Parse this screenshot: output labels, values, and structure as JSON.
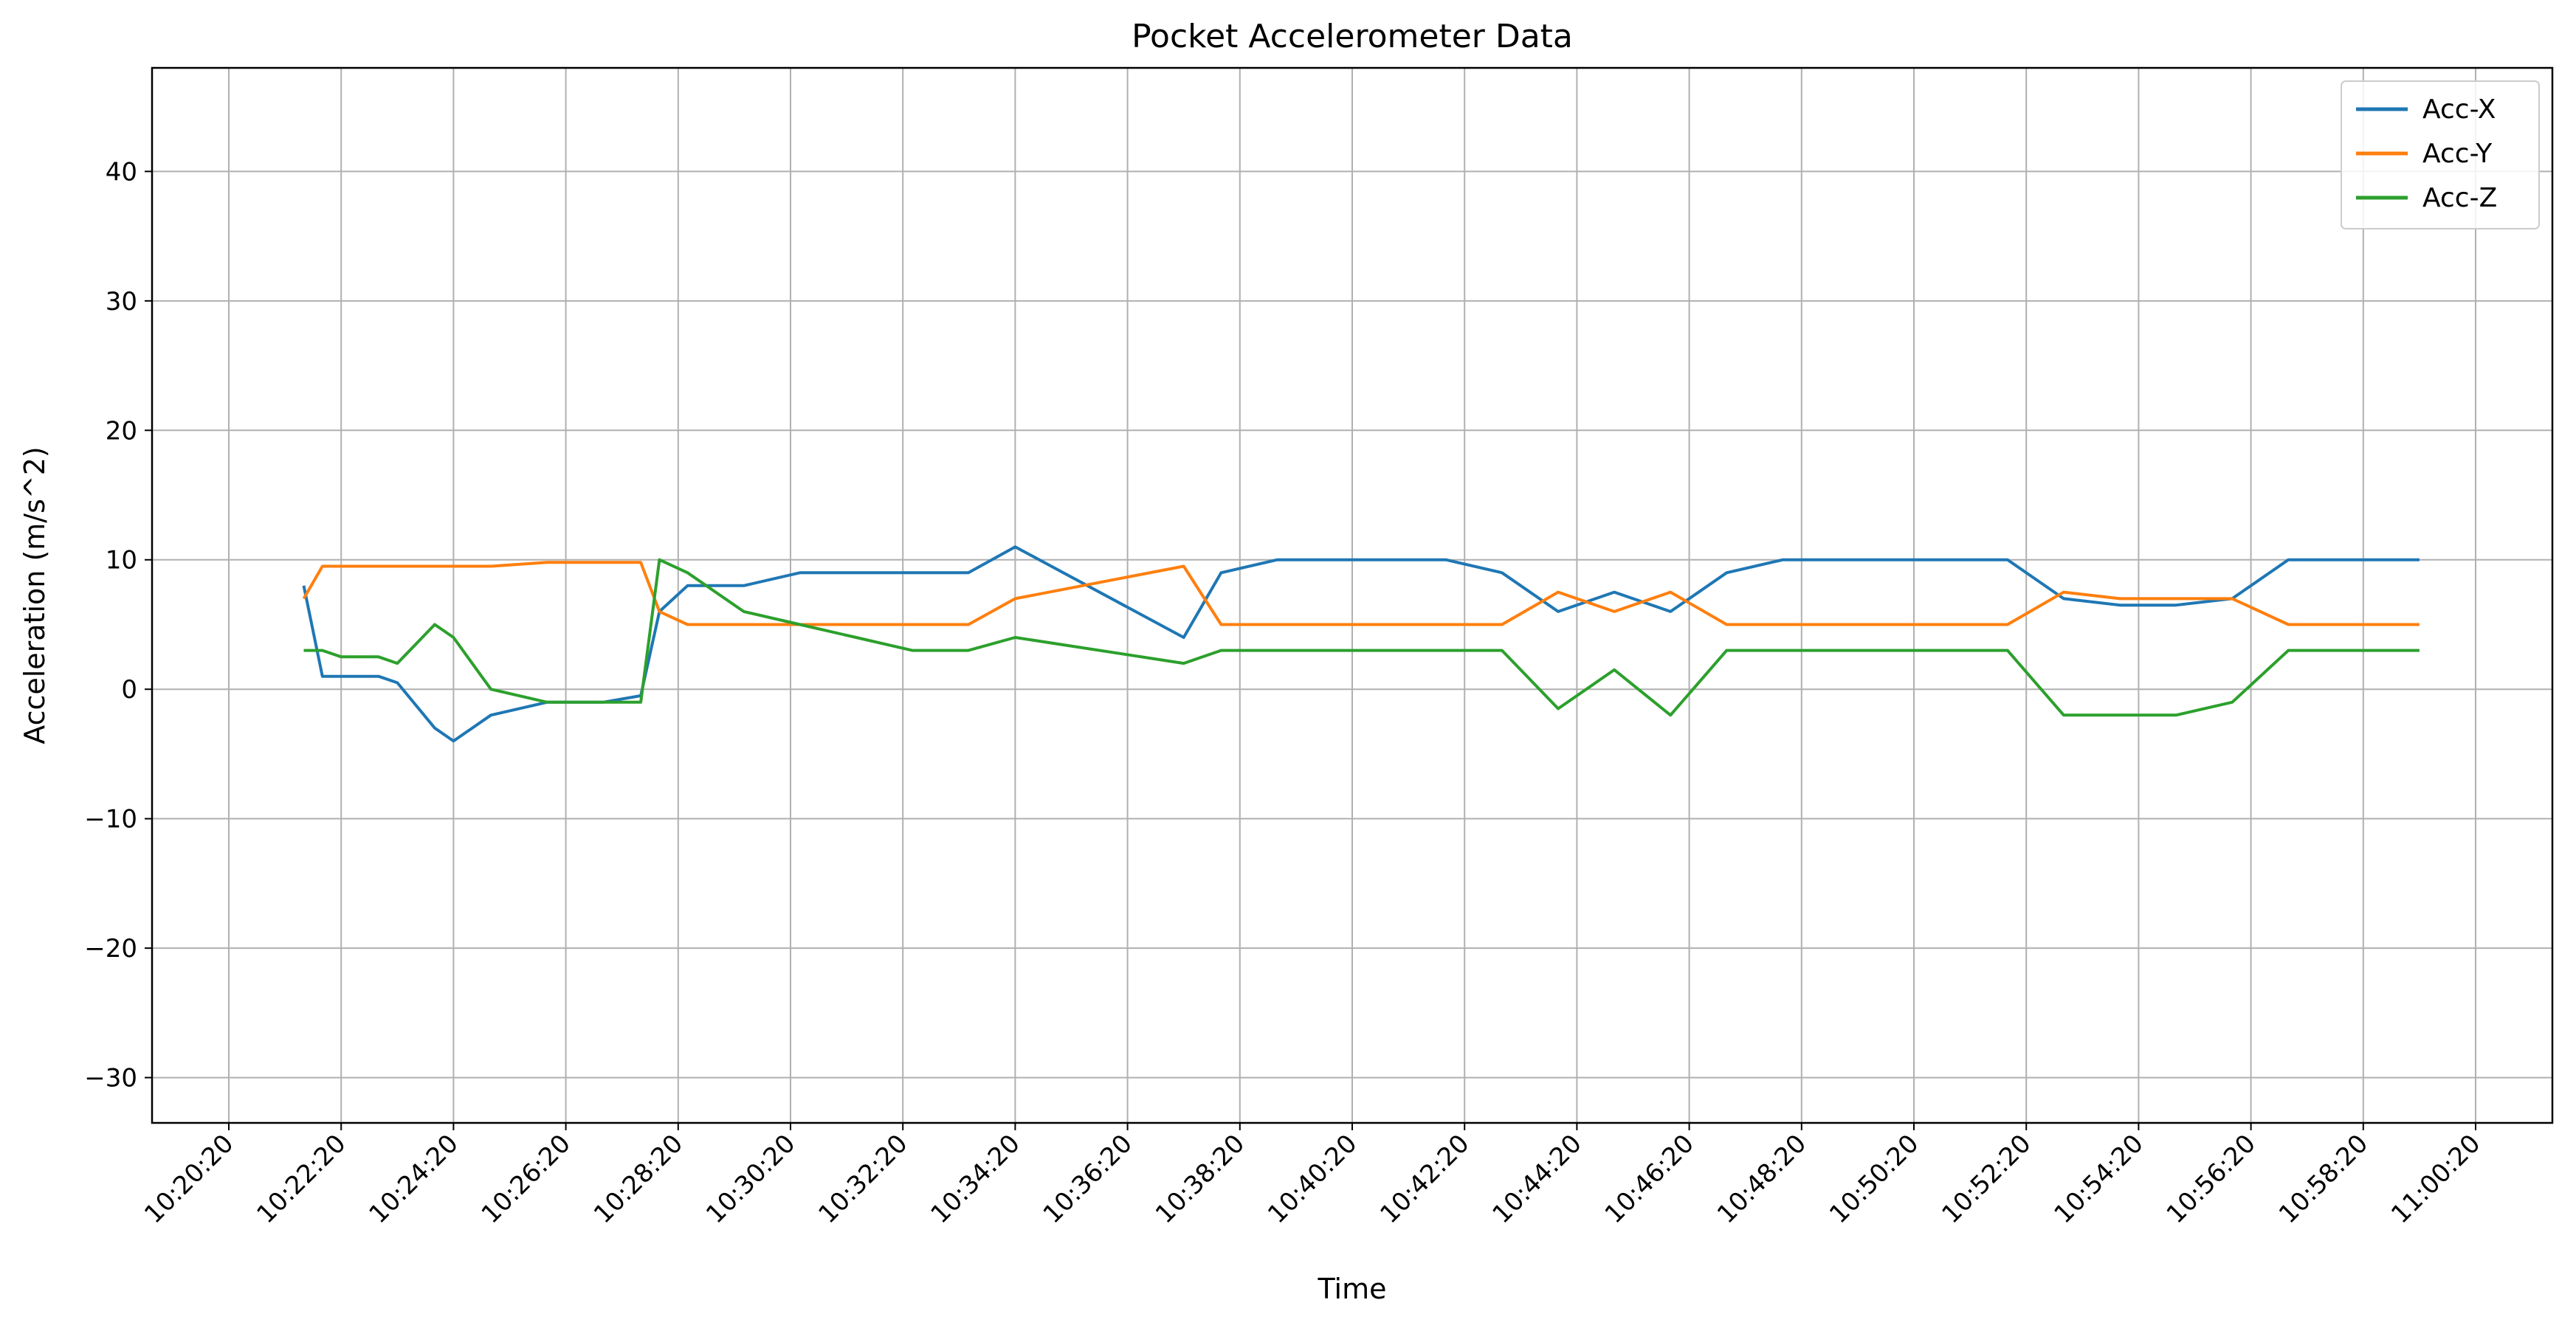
{
  "chart_data": {
    "type": "line",
    "title": "Pocket Accelerometer Data",
    "xlabel": "Time",
    "ylabel": "Acceleration (m/s^2)",
    "xlim": [
      "10:20:20",
      "11:00:20"
    ],
    "ylim": [
      -33.5,
      48
    ],
    "x_ticks": [
      "10:20:20",
      "10:22:20",
      "10:24:20",
      "10:26:20",
      "10:28:20",
      "10:30:20",
      "10:32:20",
      "10:34:20",
      "10:36:20",
      "10:38:20",
      "10:40:20",
      "10:42:20",
      "10:44:20",
      "10:46:20",
      "10:48:20",
      "10:50:20",
      "10:52:20",
      "10:54:20",
      "10:56:20",
      "10:58:20",
      "11:00:20"
    ],
    "y_ticks": [
      -30,
      -20,
      -10,
      0,
      10,
      20,
      30,
      40
    ],
    "y_tick_labels": [
      "−30",
      "−20",
      "−10",
      "0",
      "10",
      "20",
      "30",
      "40"
    ],
    "grid": true,
    "legend_position": "top-right",
    "colors": {
      "Acc-X": "#1f77b4",
      "Acc-Y": "#ff7f0e",
      "Acc-Z": "#2ca02c"
    },
    "series": [
      {
        "name": "Acc-X",
        "color": "#1f77b4",
        "x": [
          "10:21:40",
          "10:22:00",
          "10:22:20",
          "10:23:00",
          "10:23:20",
          "10:24:00",
          "10:24:20",
          "10:25:00",
          "10:26:00",
          "10:27:00",
          "10:27:40",
          "10:28:00",
          "10:28:30",
          "10:29:30",
          "10:30:30",
          "10:31:30",
          "10:32:30",
          "10:33:30",
          "10:34:20",
          "10:37:20",
          "10:38:00",
          "10:39:00",
          "10:40:00",
          "10:41:00",
          "10:42:00",
          "10:43:00",
          "10:44:00",
          "10:45:00",
          "10:46:00",
          "10:47:00",
          "10:48:00",
          "10:49:00",
          "10:50:00",
          "10:51:00",
          "10:52:00",
          "10:53:00",
          "10:54:00",
          "10:55:00",
          "10:56:00",
          "10:57:00",
          "10:58:00",
          "10:59:00",
          "10:59:20"
        ],
        "y": [
          8,
          1,
          1,
          1,
          0.5,
          -3,
          -4,
          -2,
          -1,
          -1,
          -0.5,
          6,
          8,
          8,
          9,
          9,
          9,
          9,
          11,
          4,
          9,
          10,
          10,
          10,
          10,
          9,
          6,
          7.5,
          6,
          9,
          10,
          10,
          10,
          10,
          10,
          7,
          6.5,
          6.5,
          7,
          10,
          10,
          10,
          10
        ]
      },
      {
        "name": "Acc-Y",
        "color": "#ff7f0e",
        "x": [
          "10:21:40",
          "10:22:00",
          "10:22:20",
          "10:23:00",
          "10:23:20",
          "10:24:00",
          "10:24:20",
          "10:25:00",
          "10:26:00",
          "10:27:00",
          "10:27:40",
          "10:28:00",
          "10:28:30",
          "10:29:30",
          "10:30:30",
          "10:31:30",
          "10:32:30",
          "10:33:30",
          "10:34:20",
          "10:37:20",
          "10:38:00",
          "10:39:00",
          "10:40:00",
          "10:41:00",
          "10:42:00",
          "10:43:00",
          "10:44:00",
          "10:45:00",
          "10:46:00",
          "10:47:00",
          "10:48:00",
          "10:49:00",
          "10:50:00",
          "10:51:00",
          "10:52:00",
          "10:53:00",
          "10:54:00",
          "10:55:00",
          "10:56:00",
          "10:57:00",
          "10:58:00",
          "10:59:00",
          "10:59:20"
        ],
        "y": [
          7,
          9.5,
          9.5,
          9.5,
          9.5,
          9.5,
          9.5,
          9.5,
          9.8,
          9.8,
          9.8,
          6,
          5,
          5,
          5,
          5,
          5,
          5,
          7,
          9.5,
          5,
          5,
          5,
          5,
          5,
          5,
          7.5,
          6,
          7.5,
          5,
          5,
          5,
          5,
          5,
          5,
          7.5,
          7,
          7,
          7,
          5,
          5,
          5,
          5
        ]
      },
      {
        "name": "Acc-Z",
        "color": "#2ca02c",
        "x": [
          "10:21:40",
          "10:22:00",
          "10:22:20",
          "10:23:00",
          "10:23:20",
          "10:24:00",
          "10:24:20",
          "10:25:00",
          "10:26:00",
          "10:27:00",
          "10:27:40",
          "10:28:00",
          "10:28:30",
          "10:29:30",
          "10:30:30",
          "10:31:30",
          "10:32:30",
          "10:33:30",
          "10:34:20",
          "10:37:20",
          "10:38:00",
          "10:39:00",
          "10:40:00",
          "10:41:00",
          "10:42:00",
          "10:43:00",
          "10:44:00",
          "10:45:00",
          "10:46:00",
          "10:47:00",
          "10:48:00",
          "10:49:00",
          "10:50:00",
          "10:51:00",
          "10:52:00",
          "10:53:00",
          "10:54:00",
          "10:55:00",
          "10:56:00",
          "10:57:00",
          "10:58:00",
          "10:59:00",
          "10:59:20"
        ],
        "y": [
          3,
          3,
          2.5,
          2.5,
          2,
          5,
          4,
          0,
          -1,
          -1,
          -1,
          10,
          9,
          6,
          5,
          4,
          3,
          3,
          4,
          2,
          3,
          3,
          3,
          3,
          3,
          3,
          -1.5,
          1.5,
          -2,
          3,
          3,
          3,
          3,
          3,
          3,
          -2,
          -2,
          -2,
          -1,
          3,
          3,
          3,
          3
        ]
      }
    ]
  }
}
